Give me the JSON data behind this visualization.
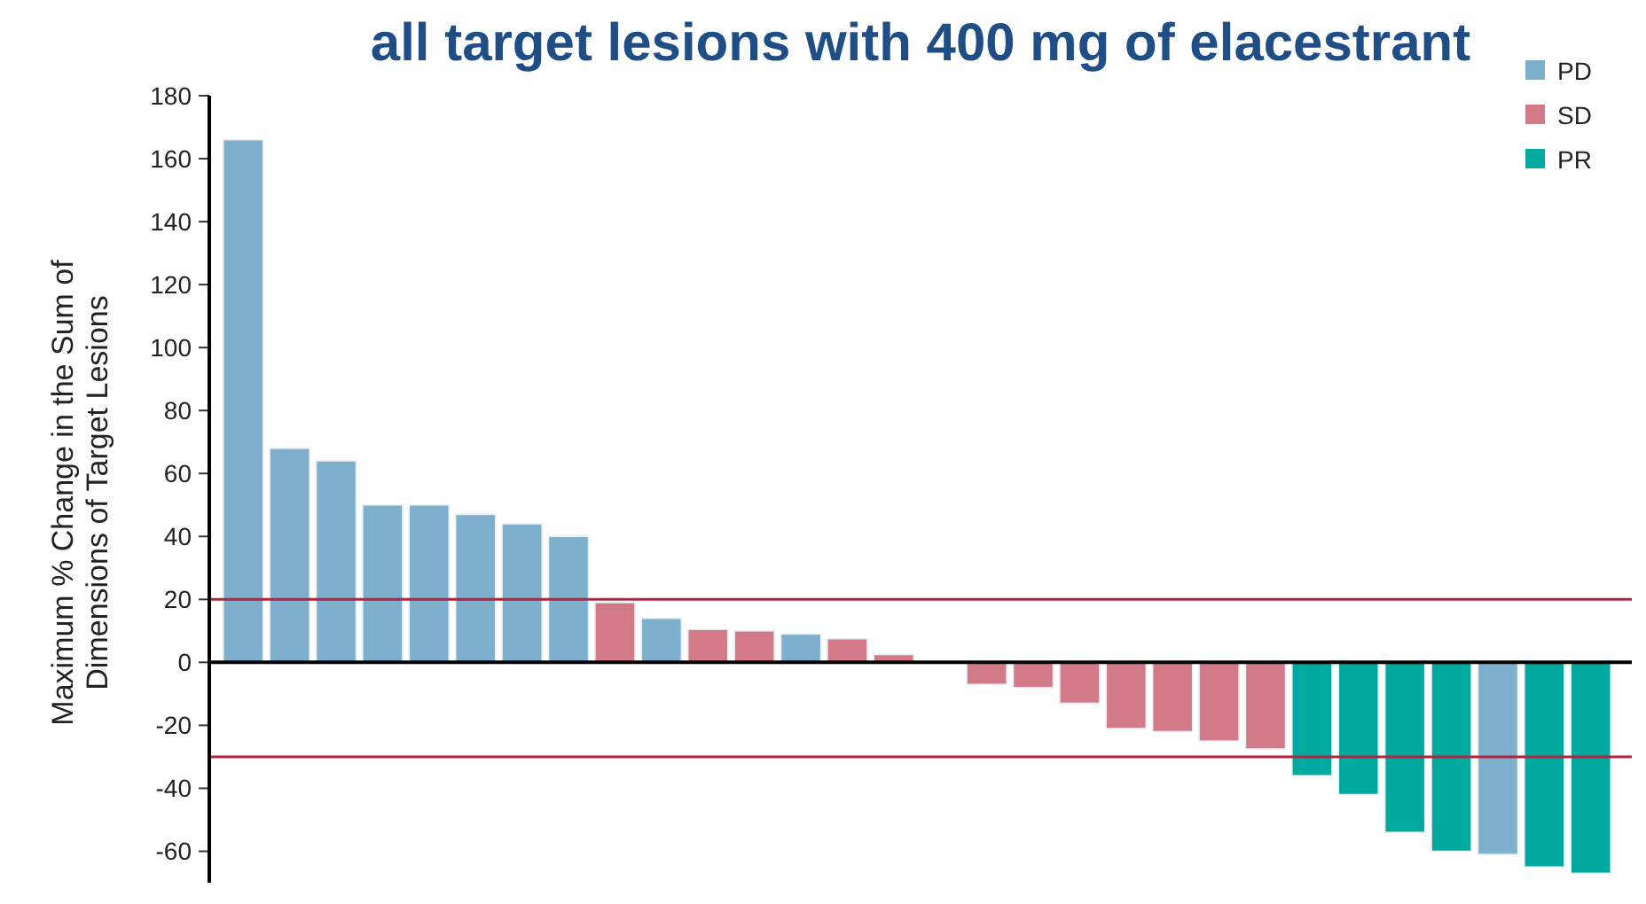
{
  "chart_data": {
    "type": "bar",
    "title": "all target lesions with 400 mg of elacestrant",
    "ylabel": "Maximum % Change in the Sum of Dimensions of Target Lesions",
    "categories": [
      null,
      null,
      null,
      null,
      null,
      null,
      null,
      null,
      null,
      null,
      null,
      null,
      null,
      null,
      null,
      null,
      null,
      null,
      null,
      null,
      null,
      null,
      null,
      null,
      null,
      null,
      null,
      null,
      null,
      null
    ],
    "series": [
      {
        "name": "PD",
        "color": "#7eafcc",
        "values": [
          166,
          68,
          64,
          50,
          50,
          47,
          44,
          40,
          null,
          14,
          null,
          null,
          9,
          null,
          null,
          null,
          null,
          null,
          null,
          null,
          null,
          null,
          null,
          null,
          null,
          null,
          null,
          -61,
          null,
          null
        ]
      },
      {
        "name": "SD",
        "color": "#d27a87",
        "values": [
          null,
          null,
          null,
          null,
          null,
          null,
          null,
          null,
          19,
          null,
          10.5,
          10,
          null,
          7.5,
          2.5,
          null,
          -7,
          -8,
          -13,
          -21,
          -22,
          -25,
          -27.5,
          null,
          null,
          null,
          null,
          null,
          null,
          null
        ]
      },
      {
        "name": "PR",
        "color": "#00a99d",
        "values": [
          null,
          null,
          null,
          null,
          null,
          null,
          null,
          null,
          null,
          null,
          null,
          null,
          null,
          null,
          null,
          null,
          null,
          null,
          null,
          null,
          null,
          null,
          null,
          -36,
          -42,
          -54,
          -60,
          null,
          -65,
          -67
        ]
      }
    ],
    "ylim": [
      -70,
      180
    ],
    "yticks": [
      -60,
      -40,
      -20,
      0,
      20,
      40,
      60,
      80,
      100,
      120,
      140,
      160,
      180
    ],
    "ref_lines": [
      {
        "axis": "y",
        "value": 20,
        "color": "#b5223f"
      },
      {
        "axis": "y",
        "value": -30,
        "color": "#b5223f"
      }
    ],
    "legend": "top right"
  }
}
